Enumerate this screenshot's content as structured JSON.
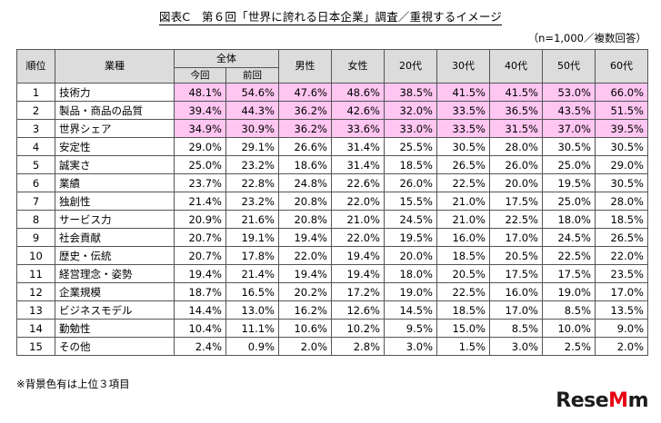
{
  "title": "図表C　第６回「世界に誇れる日本企業」調査／重視するイメージ",
  "subtitle": "（n=1,000／複数回答）",
  "header": {
    "rank": "順位",
    "item": "業種",
    "overall": "全体",
    "current": "今回",
    "previous": "前回",
    "cols": [
      "男性",
      "女性",
      "20代",
      "30代",
      "40代",
      "50代",
      "60代"
    ]
  },
  "rows": [
    {
      "rank": "1",
      "item": "技術力",
      "vals": [
        "48.1%",
        "54.6%",
        "47.6%",
        "48.6%",
        "38.5%",
        "41.5%",
        "41.5%",
        "53.0%",
        "66.0%"
      ]
    },
    {
      "rank": "2",
      "item": "製品・商品の品質",
      "vals": [
        "39.4%",
        "44.3%",
        "36.2%",
        "42.6%",
        "32.0%",
        "33.5%",
        "36.5%",
        "43.5%",
        "51.5%"
      ]
    },
    {
      "rank": "3",
      "item": "世界シェア",
      "vals": [
        "34.9%",
        "30.9%",
        "36.2%",
        "33.6%",
        "33.0%",
        "33.5%",
        "31.5%",
        "37.0%",
        "39.5%"
      ]
    },
    {
      "rank": "4",
      "item": "安定性",
      "vals": [
        "29.0%",
        "29.1%",
        "26.6%",
        "31.4%",
        "25.5%",
        "30.5%",
        "28.0%",
        "30.5%",
        "30.5%"
      ]
    },
    {
      "rank": "5",
      "item": "誠実さ",
      "vals": [
        "25.0%",
        "23.2%",
        "18.6%",
        "31.4%",
        "18.5%",
        "26.5%",
        "26.0%",
        "25.0%",
        "29.0%"
      ]
    },
    {
      "rank": "6",
      "item": "業績",
      "vals": [
        "23.7%",
        "22.8%",
        "24.8%",
        "22.6%",
        "26.0%",
        "22.5%",
        "20.0%",
        "19.5%",
        "30.5%"
      ]
    },
    {
      "rank": "7",
      "item": "独創性",
      "vals": [
        "21.4%",
        "23.2%",
        "20.8%",
        "22.0%",
        "15.5%",
        "21.0%",
        "17.5%",
        "25.0%",
        "28.0%"
      ]
    },
    {
      "rank": "8",
      "item": "サービス力",
      "vals": [
        "20.9%",
        "21.6%",
        "20.8%",
        "21.0%",
        "24.5%",
        "21.0%",
        "22.5%",
        "18.0%",
        "18.5%"
      ]
    },
    {
      "rank": "9",
      "item": "社会貢献",
      "vals": [
        "20.7%",
        "19.1%",
        "19.4%",
        "22.0%",
        "19.5%",
        "16.0%",
        "17.0%",
        "24.5%",
        "26.5%"
      ]
    },
    {
      "rank": "10",
      "item": "歴史・伝統",
      "vals": [
        "20.7%",
        "17.8%",
        "22.0%",
        "19.4%",
        "20.0%",
        "18.5%",
        "20.5%",
        "22.5%",
        "22.0%"
      ]
    },
    {
      "rank": "11",
      "item": "経営理念・姿勢",
      "vals": [
        "19.4%",
        "21.4%",
        "19.4%",
        "19.4%",
        "18.0%",
        "20.5%",
        "17.5%",
        "17.5%",
        "23.5%"
      ]
    },
    {
      "rank": "12",
      "item": "企業規模",
      "vals": [
        "18.7%",
        "16.5%",
        "20.2%",
        "17.2%",
        "19.0%",
        "22.5%",
        "16.0%",
        "19.0%",
        "17.0%"
      ]
    },
    {
      "rank": "13",
      "item": "ビジネスモデル",
      "vals": [
        "14.4%",
        "13.0%",
        "16.2%",
        "12.6%",
        "14.5%",
        "18.5%",
        "17.0%",
        "8.5%",
        "13.5%"
      ]
    },
    {
      "rank": "14",
      "item": "勤勉性",
      "vals": [
        "10.4%",
        "11.1%",
        "10.6%",
        "10.2%",
        "9.5%",
        "15.0%",
        "8.5%",
        "10.0%",
        "9.0%"
      ]
    },
    {
      "rank": "15",
      "item": "その他",
      "vals": [
        "2.4%",
        "0.9%",
        "2.0%",
        "2.8%",
        "3.0%",
        "1.5%",
        "3.0%",
        "2.5%",
        "2.0%"
      ]
    }
  ],
  "highlight_rows": 3,
  "highlight_color": "#ffc6f2",
  "header_color": "#dcdcdc",
  "note": "※背景色有は上位３項目",
  "logo": {
    "text_main": "Rese",
    "text_accent": "M",
    "text_tail": "m"
  }
}
